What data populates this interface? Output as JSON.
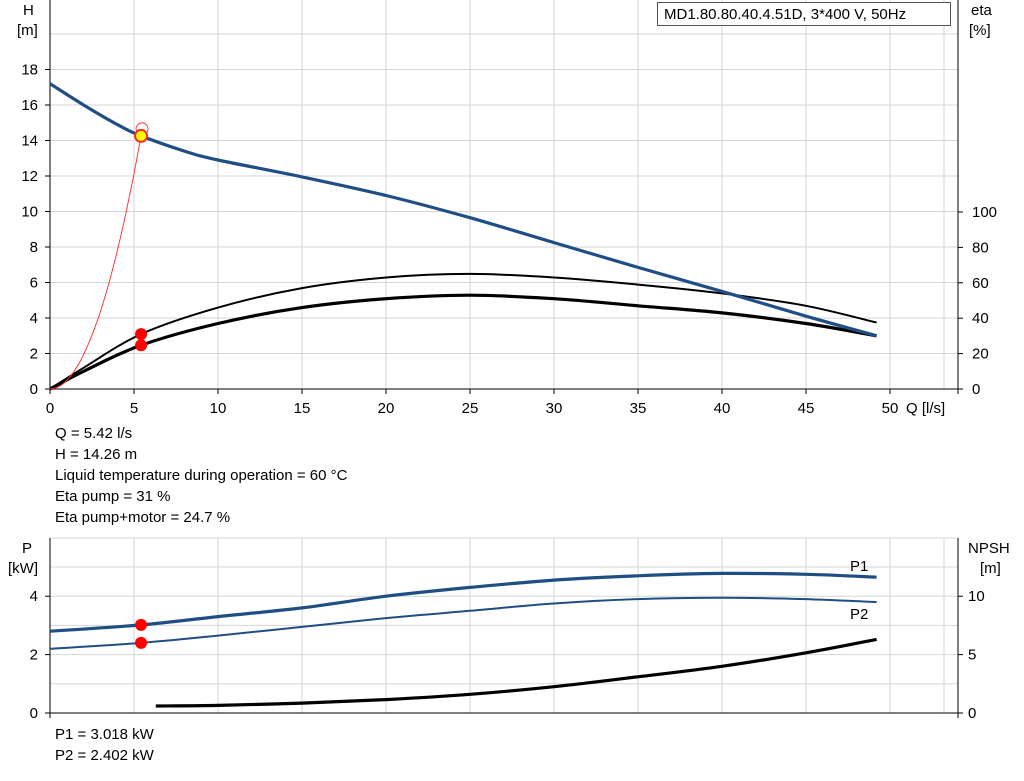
{
  "model_label": "MD1.80.80.40.4.51D, 3*400 V, 50Hz",
  "operating_point": [
    "Q = 5.42 l/s",
    "H = 14.26 m",
    "Liquid temperature during operation = 60 °C",
    "Eta pump = 31 %",
    "Eta pump+motor = 24.7 %"
  ],
  "power_info": [
    "P1 = 3.018 kW",
    "P2 = 2.402 kW"
  ],
  "colors": {
    "head": "#1f4e85",
    "power": "#1f4e85",
    "efficiency": "#000000",
    "npsh": "#000000",
    "op_point": "#ff0000",
    "op_fill": "#ffff00"
  },
  "chart_data": [
    {
      "type": "line",
      "title": "",
      "x_label": "Q [l/s]",
      "x_range": [
        0,
        50
      ],
      "x_ticks": [
        0,
        5,
        10,
        15,
        20,
        25,
        30,
        35,
        40,
        45,
        50
      ],
      "y_left_label": [
        "H",
        "[m]"
      ],
      "y_left_range": [
        0,
        20
      ],
      "y_left_ticks": [
        0,
        2,
        4,
        6,
        8,
        10,
        12,
        14,
        16,
        18
      ],
      "y_right_label": [
        "eta",
        "[%]"
      ],
      "y_right_range": [
        0,
        100
      ],
      "y_right_ticks": [
        0,
        20,
        40,
        60,
        80,
        100
      ],
      "grid": true,
      "series": [
        {
          "axis": "left",
          "x": [
            0,
            2,
            4,
            5.42,
            8,
            10,
            15,
            20,
            25,
            30,
            35,
            40,
            45,
            49.2
          ],
          "y": [
            17.2,
            16.0,
            14.9,
            14.26,
            13.4,
            12.9,
            11.95,
            10.9,
            9.65,
            8.25,
            6.85,
            5.5,
            4.1,
            3.0
          ]
        },
        {
          "axis": "right",
          "x": [
            0,
            2,
            5.42,
            10,
            15,
            20,
            25,
            30,
            35,
            40,
            45,
            49.2
          ],
          "y": [
            0,
            12,
            31,
            46,
            57,
            63,
            65,
            63,
            59,
            54,
            47,
            37.5
          ]
        },
        {
          "axis": "right",
          "x": [
            0,
            2,
            5.42,
            10,
            15,
            20,
            25,
            30,
            35,
            40,
            45,
            49.2
          ],
          "y": [
            0,
            10,
            24.7,
            37,
            46,
            51,
            53,
            51,
            47,
            43,
            37,
            30
          ]
        }
      ],
      "operating_point": {
        "x": 5.42,
        "y": 14.26,
        "eta_pump": 31,
        "eta_total": 24.7
      }
    },
    {
      "type": "line",
      "title": "",
      "x_range": [
        0,
        50
      ],
      "y_left_label": [
        "P",
        "[kW]"
      ],
      "y_left_range": [
        0,
        5
      ],
      "y_left_ticks": [
        0,
        2,
        4
      ],
      "y_right_label": [
        "NPSH",
        "[m]"
      ],
      "y_right_range": [
        0,
        12.5
      ],
      "y_right_ticks": [
        0,
        5,
        10
      ],
      "grid": true,
      "series": [
        {
          "name": "P1",
          "axis": "left",
          "x": [
            0,
            5.42,
            10,
            15,
            20,
            25,
            30,
            35,
            40,
            45,
            49.2
          ],
          "y": [
            2.8,
            3.018,
            3.3,
            3.6,
            4.0,
            4.3,
            4.55,
            4.7,
            4.78,
            4.75,
            4.65
          ]
        },
        {
          "name": "P2",
          "axis": "left",
          "x": [
            0,
            5.42,
            10,
            15,
            20,
            25,
            30,
            35,
            40,
            45,
            49.2
          ],
          "y": [
            2.2,
            2.402,
            2.65,
            2.95,
            3.25,
            3.5,
            3.75,
            3.9,
            3.95,
            3.9,
            3.8
          ]
        },
        {
          "axis": "right",
          "x": [
            6.3,
            10,
            15,
            20,
            25,
            30,
            35,
            40,
            45,
            49.2
          ],
          "y": [
            0.6,
            0.65,
            0.85,
            1.15,
            1.6,
            2.25,
            3.1,
            4.0,
            5.15,
            6.3
          ]
        }
      ],
      "operating_point": {
        "x": 5.42,
        "p1": 3.018,
        "p2": 2.402
      }
    }
  ]
}
